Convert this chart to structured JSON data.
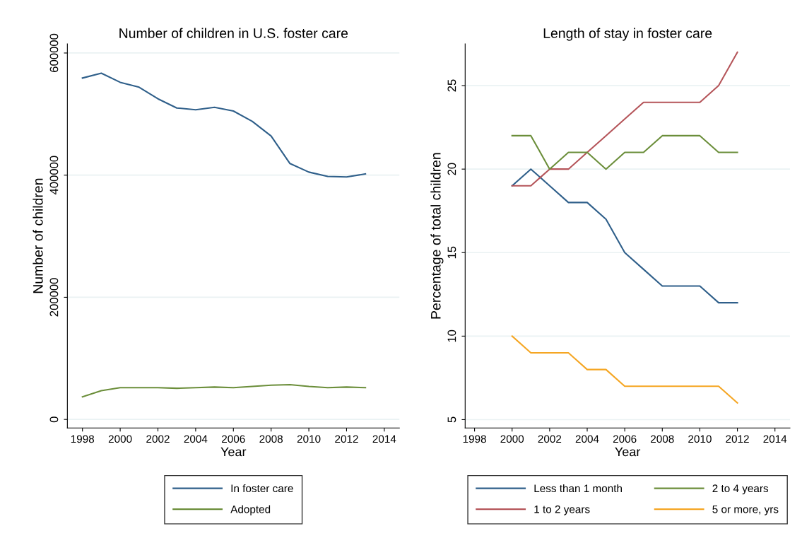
{
  "chart_data": [
    {
      "type": "line",
      "title": "Number of children in U.S. foster care",
      "xlabel": "Year",
      "ylabel": "Number of children",
      "x": [
        1998,
        1999,
        2000,
        2001,
        2002,
        2003,
        2004,
        2005,
        2006,
        2007,
        2008,
        2009,
        2010,
        2011,
        2012,
        2013
      ],
      "series": [
        {
          "name": "In foster care",
          "color": "#2f5f8a",
          "values": [
            559000,
            567000,
            552000,
            544000,
            525000,
            510000,
            507000,
            511000,
            505000,
            488000,
            464000,
            419000,
            405000,
            398000,
            397000,
            402000
          ]
        },
        {
          "name": "Adopted",
          "color": "#6b8e3a",
          "values": [
            37000,
            47000,
            52000,
            52000,
            52000,
            51000,
            52000,
            53000,
            52000,
            54000,
            56000,
            57000,
            54000,
            52000,
            53000,
            52000
          ]
        }
      ],
      "xlim": [
        1997.2,
        2014.8
      ],
      "xticks": [
        1998,
        2000,
        2002,
        2004,
        2006,
        2008,
        2010,
        2012,
        2014
      ],
      "ylim": [
        -14000,
        615000
      ],
      "yticks": [
        0,
        200000,
        400000,
        600000
      ],
      "grid": "y",
      "legend": "bottom"
    },
    {
      "type": "line",
      "title": "Length of stay in foster care",
      "xlabel": "Year",
      "ylabel": "Percentage of total children",
      "x": [
        2000,
        2001,
        2002,
        2003,
        2004,
        2005,
        2006,
        2007,
        2008,
        2009,
        2010,
        2011,
        2012
      ],
      "series": [
        {
          "name": "Less than 1 month",
          "color": "#2f5f8a",
          "values": [
            19,
            20,
            19,
            18,
            18,
            17,
            15,
            14,
            13,
            13,
            13,
            12,
            12
          ]
        },
        {
          "name": "1 to 2 years",
          "color": "#b5555a",
          "values": [
            19,
            19,
            20,
            20,
            21,
            22,
            23,
            24,
            24,
            24,
            24,
            25,
            27
          ]
        },
        {
          "name": "2 to 4 years",
          "color": "#6b8e3a",
          "values": [
            22,
            22,
            20,
            21,
            21,
            20,
            21,
            21,
            22,
            22,
            22,
            21,
            21
          ]
        },
        {
          "name": "5 or more, yrs",
          "color": "#f5a623",
          "values": [
            10,
            9,
            9,
            9,
            8,
            8,
            7,
            7,
            7,
            7,
            7,
            7,
            6
          ]
        }
      ],
      "xlim": [
        1997.5,
        2014.8
      ],
      "xticks": [
        1998,
        2000,
        2002,
        2004,
        2006,
        2008,
        2010,
        2012,
        2014
      ],
      "ylim": [
        4.5,
        27.5
      ],
      "yticks": [
        5,
        10,
        15,
        20,
        25
      ],
      "grid": "y",
      "legend": "bottom"
    }
  ]
}
